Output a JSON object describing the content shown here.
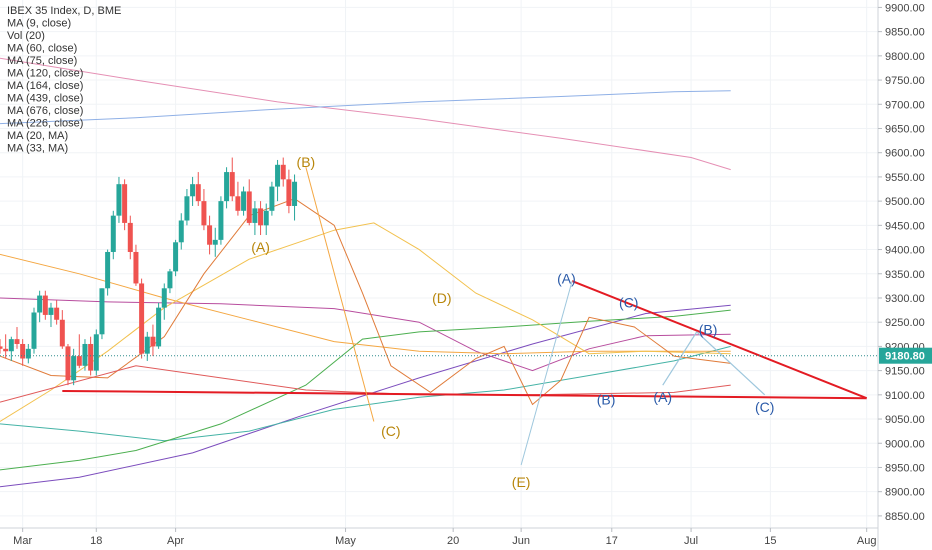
{
  "chart_data": {
    "type": "candlestick",
    "title": "IBEX 35 Index, D, BME",
    "indicators": [
      "Vol (20)",
      "MA (9, close)",
      "MA (60, close)",
      "MA (75, close)",
      "MA (120, close)",
      "MA (164, close)",
      "MA (439, close)",
      "MA (676, close)",
      "MA (226, close)",
      "MA (20, MA)",
      "MA (33, MA)"
    ],
    "y_ticks": [
      "9900.00",
      "9850.00",
      "9800.00",
      "9750.00",
      "9700.00",
      "9650.00",
      "9600.00",
      "9550.00",
      "9500.00",
      "9450.00",
      "9400.00",
      "9350.00",
      "9300.00",
      "9250.00",
      "9200.00",
      "9150.00",
      "9100.00",
      "9050.00",
      "9000.00",
      "8950.00",
      "8900.00",
      "8850.00"
    ],
    "y_range": [
      8825,
      9905
    ],
    "x_ticks": [
      {
        "label": "Mar",
        "day": 0
      },
      {
        "label": "18",
        "day": 13
      },
      {
        "label": "Apr",
        "day": 27
      },
      {
        "label": "May",
        "day": 57
      },
      {
        "label": "20",
        "day": 76
      },
      {
        "label": "Jun",
        "day": 88
      },
      {
        "label": "17",
        "day": 104
      },
      {
        "label": "Jul",
        "day": 118
      },
      {
        "label": "15",
        "day": 132
      },
      {
        "label": "Aug",
        "day": 149
      }
    ],
    "x_range": [
      -4,
      151
    ],
    "last_price": "9180.80",
    "candles": [
      [
        -4,
        9200,
        9215,
        9185,
        9195
      ],
      [
        -3,
        9195,
        9225,
        9175,
        9190
      ],
      [
        -2,
        9190,
        9220,
        9170,
        9215
      ],
      [
        -1,
        9215,
        9240,
        9195,
        9205
      ],
      [
        0,
        9205,
        9215,
        9160,
        9175
      ],
      [
        1,
        9175,
        9205,
        9165,
        9195
      ],
      [
        2,
        9195,
        9280,
        9185,
        9270
      ],
      [
        3,
        9270,
        9315,
        9250,
        9305
      ],
      [
        4,
        9305,
        9315,
        9255,
        9265
      ],
      [
        5,
        9265,
        9290,
        9240,
        9280
      ],
      [
        6,
        9280,
        9295,
        9245,
        9255
      ],
      [
        7,
        9255,
        9275,
        9195,
        9200
      ],
      [
        8,
        9200,
        9205,
        9120,
        9130
      ],
      [
        9,
        9130,
        9195,
        9120,
        9180
      ],
      [
        10,
        9180,
        9225,
        9155,
        9160
      ],
      [
        11,
        9160,
        9215,
        9150,
        9205
      ],
      [
        12,
        9205,
        9220,
        9140,
        9150
      ],
      [
        13,
        9150,
        9235,
        9140,
        9225
      ],
      [
        14,
        9225,
        9320,
        9215,
        9320
      ],
      [
        15,
        9320,
        9400,
        9305,
        9395
      ],
      [
        16,
        9395,
        9480,
        9380,
        9470
      ],
      [
        17,
        9470,
        9550,
        9455,
        9535
      ],
      [
        18,
        9535,
        9545,
        9440,
        9455
      ],
      [
        19,
        9455,
        9470,
        9380,
        9395
      ],
      [
        20,
        9395,
        9410,
        9325,
        9330
      ],
      [
        21,
        9330,
        9340,
        9175,
        9185
      ],
      [
        22,
        9185,
        9230,
        9170,
        9220
      ],
      [
        23,
        9220,
        9245,
        9180,
        9200
      ],
      [
        24,
        9200,
        9290,
        9195,
        9280
      ],
      [
        25,
        9280,
        9330,
        9255,
        9320
      ],
      [
        26,
        9320,
        9360,
        9310,
        9355
      ],
      [
        27,
        9355,
        9420,
        9345,
        9415
      ],
      [
        28,
        9415,
        9475,
        9400,
        9460
      ],
      [
        29,
        9460,
        9525,
        9450,
        9510
      ],
      [
        30,
        9510,
        9550,
        9490,
        9535
      ],
      [
        31,
        9535,
        9560,
        9490,
        9500
      ],
      [
        32,
        9500,
        9525,
        9440,
        9450
      ],
      [
        33,
        9450,
        9470,
        9390,
        9410
      ],
      [
        34,
        9410,
        9445,
        9385,
        9420
      ],
      [
        35,
        9420,
        9510,
        9410,
        9500
      ],
      [
        36,
        9500,
        9570,
        9485,
        9560
      ],
      [
        37,
        9560,
        9590,
        9500,
        9510
      ],
      [
        38,
        9510,
        9540,
        9470,
        9480
      ],
      [
        39,
        9480,
        9530,
        9470,
        9520
      ],
      [
        40,
        9520,
        9545,
        9450,
        9455
      ],
      [
        41,
        9455,
        9500,
        9430,
        9485
      ],
      [
        42,
        9485,
        9500,
        9430,
        9450
      ],
      [
        43,
        9450,
        9495,
        9430,
        9480
      ],
      [
        44,
        9480,
        9540,
        9470,
        9530
      ],
      [
        45,
        9530,
        9585,
        9500,
        9575
      ],
      [
        46,
        9575,
        9590,
        9530,
        9545
      ],
      [
        47,
        9545,
        9565,
        9475,
        9490
      ],
      [
        48,
        9490,
        9555,
        9460,
        9540
      ]
    ],
    "wave_labels": [
      {
        "text": "(B)",
        "day": 50,
        "price": 9570,
        "color": "#b8860b"
      },
      {
        "text": "(A)",
        "day": 42,
        "price": 9395,
        "color": "#b8860b"
      },
      {
        "text": "(D)",
        "day": 74,
        "price": 9290,
        "color": "#b8860b"
      },
      {
        "text": "(C)",
        "day": 65,
        "price": 9015,
        "color": "#b8860b"
      },
      {
        "text": "(E)",
        "day": 88,
        "price": 8910,
        "color": "#b8860b"
      },
      {
        "text": "(A)",
        "day": 96,
        "price": 9330,
        "color": "#2a5aa8"
      },
      {
        "text": "(C)",
        "day": 107,
        "price": 9280,
        "color": "#2a5aa8"
      },
      {
        "text": "(B)",
        "day": 103,
        "price": 9080,
        "color": "#2a5aa8"
      },
      {
        "text": "(A)",
        "day": 113,
        "price": 9085,
        "color": "#2a5aa8"
      },
      {
        "text": "(B)",
        "day": 121,
        "price": 9225,
        "color": "#2a5aa8"
      },
      {
        "text": "(C)",
        "day": 131,
        "price": 9065,
        "color": "#2a5aa8"
      }
    ]
  }
}
